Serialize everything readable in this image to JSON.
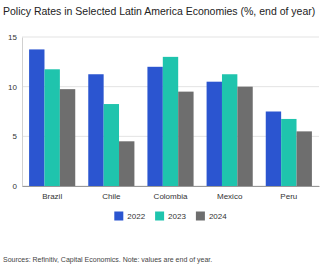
{
  "chart_data": {
    "type": "bar",
    "title": "Policy Rates in Selected Latin America Economies (%, end of year)",
    "source": "Sources: Refinitiv, Capital Economics. Note: values are end of year.",
    "categories": [
      "Brazil",
      "Chile",
      "Colombia",
      "Mexico",
      "Peru"
    ],
    "series": [
      {
        "name": "2022",
        "color": "#2b55d0",
        "values": [
          13.75,
          11.25,
          12.0,
          10.5,
          7.5
        ]
      },
      {
        "name": "2023",
        "color": "#1fc4ad",
        "values": [
          11.75,
          8.25,
          13.0,
          11.25,
          6.75
        ]
      },
      {
        "name": "2024",
        "color": "#6e6e6e",
        "values": [
          9.75,
          4.5,
          9.5,
          10.0,
          5.5
        ]
      }
    ],
    "ylim": [
      0,
      15
    ],
    "yticks": [
      0,
      5,
      10,
      15
    ],
    "grid": true,
    "legend": "bottom"
  }
}
